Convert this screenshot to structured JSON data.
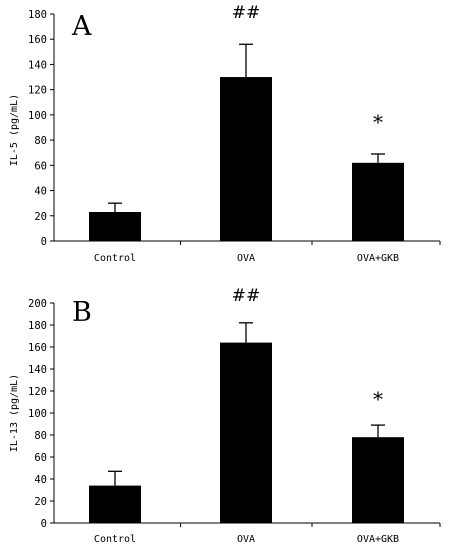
{
  "chart_data": [
    {
      "type": "bar",
      "panel_label": "A",
      "ylabel": "IL-5 (pg/mL)",
      "categories": [
        "Control",
        "OVA",
        "OVA+GKB"
      ],
      "values": [
        23,
        130,
        62
      ],
      "errors": [
        7,
        26,
        7
      ],
      "annotations": [
        "",
        "##",
        "*"
      ],
      "ylim": [
        0,
        180
      ],
      "yticks": [
        "0",
        "20",
        "40",
        "60",
        "80",
        "100",
        "120",
        "140",
        "160",
        "180"
      ],
      "bar_color": "#000000"
    },
    {
      "type": "bar",
      "panel_label": "B",
      "ylabel": "IL-13 (pg/mL)",
      "categories": [
        "Control",
        "OVA",
        "OVA+GKB"
      ],
      "values": [
        34,
        164,
        78
      ],
      "errors": [
        13,
        18,
        11
      ],
      "annotations": [
        "",
        "##",
        "*"
      ],
      "ylim": [
        0,
        200
      ],
      "yticks": [
        "0",
        "20",
        "40",
        "60",
        "80",
        "100",
        "120",
        "140",
        "160",
        "180",
        "200"
      ],
      "bar_color": "#000000"
    }
  ]
}
